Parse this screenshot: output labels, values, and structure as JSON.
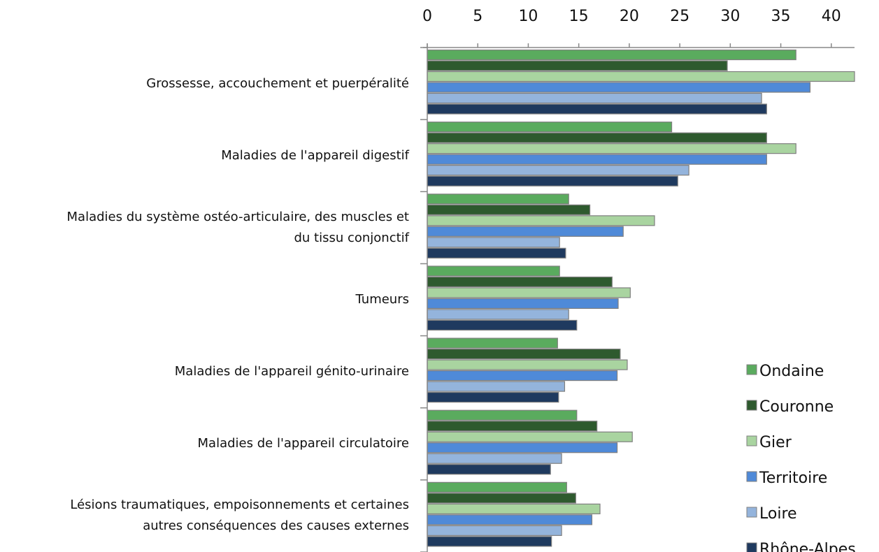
{
  "chart_data": {
    "type": "barh",
    "categories": [
      "Grossesse, accouchement et puerpéralité",
      "Maladies de l'appareil  digestif",
      "Maladies du système ostéo-articulaire,  des muscles et\ndu tissu conjonctif",
      "Tumeurs",
      "Maladies de l'appareil  génito-urinaire",
      "Maladies de l'appareil  circulatoire",
      "Lésions traumatiques,  empoisonnements  et certaines\nautres conséquences des causes externes"
    ],
    "series": [
      {
        "name": "Ondaine",
        "color": "#5aab5e",
        "values": [
          36.5,
          24.2,
          14.0,
          13.1,
          12.9,
          14.8,
          13.8
        ]
      },
      {
        "name": "Couronne",
        "color": "#2e5a2e",
        "values": [
          29.7,
          33.6,
          16.1,
          18.3,
          19.1,
          16.8,
          14.7
        ]
      },
      {
        "name": "Gier",
        "color": "#a9d4a0",
        "values": [
          42.3,
          36.5,
          22.5,
          20.1,
          19.8,
          20.3,
          17.1
        ]
      },
      {
        "name": "Territoire",
        "color": "#4f8ad8",
        "values": [
          37.9,
          33.6,
          19.4,
          18.9,
          18.8,
          18.8,
          16.3
        ]
      },
      {
        "name": "Loire",
        "color": "#94b4dc",
        "values": [
          33.1,
          25.9,
          13.1,
          14.0,
          13.6,
          13.3,
          13.3
        ]
      },
      {
        "name": "Rhône-Alpes",
        "color": "#1f3a5f",
        "values": [
          33.6,
          24.8,
          13.7,
          14.8,
          13.0,
          12.2,
          12.3
        ]
      }
    ],
    "xlim": [
      0,
      42.3
    ],
    "xticks": [
      0,
      5,
      10,
      15,
      20,
      25,
      30,
      35,
      40
    ],
    "legend": "right"
  }
}
